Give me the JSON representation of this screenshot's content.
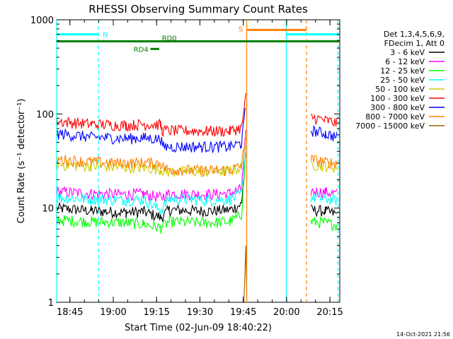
{
  "chart_data": {
    "type": "line",
    "title": "RHESSI Observing Summary Count Rates",
    "xlabel": "Start Time (02-Jun-09 18:40:22)",
    "ylabel": "Count Rate (s⁻¹ detector⁻¹)",
    "yscale": "log",
    "ylim": [
      1,
      1000
    ],
    "xlim_minutes": [
      0,
      98
    ],
    "x_ticks": [
      {
        "label": "18:45",
        "min": 4.6
      },
      {
        "label": "19:00",
        "min": 19.6
      },
      {
        "label": "19:15",
        "min": 34.6
      },
      {
        "label": "19:30",
        "min": 49.6
      },
      {
        "label": "19:45",
        "min": 64.6
      },
      {
        "label": "20:00",
        "min": 79.6
      },
      {
        "label": "20:15",
        "min": 94.6
      }
    ],
    "y_ticks": [
      {
        "label": "1",
        "v": 1
      },
      {
        "label": "10",
        "v": 10
      },
      {
        "label": "100",
        "v": 100
      },
      {
        "label": "1000",
        "v": 1000
      }
    ],
    "legend_header": [
      "Det 1,3,4,5,6,9,",
      "FDecim 1, Att 0"
    ],
    "series": [
      {
        "name": "3 - 6 keV",
        "color": "#000000",
        "segments": [
          [
            0,
            10
          ],
          [
            12,
            9.4
          ],
          [
            24,
            9.0
          ],
          [
            30,
            9.2
          ],
          [
            36,
            8.0
          ],
          [
            39,
            9.6
          ],
          [
            52,
            9.3
          ],
          [
            60,
            9.6
          ],
          [
            64,
            11
          ],
          [
            65.5,
            40
          ],
          [
            66,
            null
          ],
          [
            80,
            null
          ],
          [
            87,
            null
          ],
          [
            88,
            9.6
          ],
          [
            93,
            9.3
          ],
          [
            97,
            8.6
          ]
        ]
      },
      {
        "name": "6 - 12 keV",
        "color": "#ff00ff",
        "segments": [
          [
            0,
            15
          ],
          [
            12,
            14.3
          ],
          [
            24,
            14
          ],
          [
            30,
            14.2
          ],
          [
            36,
            13
          ],
          [
            39,
            14.3
          ],
          [
            52,
            14
          ],
          [
            60,
            14.3
          ],
          [
            64,
            16
          ],
          [
            65.5,
            60
          ],
          [
            66,
            null
          ],
          [
            80,
            null
          ],
          [
            87,
            null
          ],
          [
            88,
            15.2
          ],
          [
            93,
            14.8
          ],
          [
            97,
            14.2
          ]
        ]
      },
      {
        "name": "12 - 25 keV",
        "color": "#00ff00",
        "segments": [
          [
            0,
            7.5
          ],
          [
            12,
            7.2
          ],
          [
            24,
            7.0
          ],
          [
            30,
            6.8
          ],
          [
            36,
            6.2
          ],
          [
            39,
            7.2
          ],
          [
            52,
            7.0
          ],
          [
            60,
            7.2
          ],
          [
            64,
            8.5
          ],
          [
            65.5,
            40
          ],
          [
            66,
            null
          ],
          [
            80,
            null
          ],
          [
            87,
            null
          ],
          [
            88,
            7.2
          ],
          [
            93,
            7.0
          ],
          [
            97,
            6.6
          ]
        ]
      },
      {
        "name": "25 - 50 keV",
        "color": "#00ffff",
        "segments": [
          [
            0,
            13
          ],
          [
            12,
            12.5
          ],
          [
            24,
            12.2
          ],
          [
            30,
            12.4
          ],
          [
            36,
            9.5
          ],
          [
            39,
            12.6
          ],
          [
            52,
            12.2
          ],
          [
            60,
            12.5
          ],
          [
            64,
            14
          ],
          [
            65.5,
            45
          ],
          [
            66,
            null
          ],
          [
            80,
            null
          ],
          [
            87,
            null
          ],
          [
            88,
            13
          ],
          [
            93,
            12.6
          ],
          [
            97,
            12.1
          ]
        ]
      },
      {
        "name": "50 - 100 keV",
        "color": "#cccc00",
        "segments": [
          [
            0,
            29
          ],
          [
            12,
            28
          ],
          [
            24,
            27
          ],
          [
            30,
            27
          ],
          [
            36,
            26
          ],
          [
            38,
            24.5
          ],
          [
            52,
            24.5
          ],
          [
            60,
            25
          ],
          [
            64,
            27
          ],
          [
            65.5,
            55
          ],
          [
            66,
            null
          ],
          [
            80,
            null
          ],
          [
            87,
            null
          ],
          [
            88,
            29
          ],
          [
            93,
            28
          ],
          [
            97,
            27
          ]
        ]
      },
      {
        "name": "100 - 300 keV",
        "color": "#ff0000",
        "segments": [
          [
            0,
            84
          ],
          [
            12,
            78
          ],
          [
            24,
            76
          ],
          [
            30,
            78
          ],
          [
            36,
            77
          ],
          [
            36.5,
            67
          ],
          [
            52,
            66
          ],
          [
            60,
            66
          ],
          [
            64,
            72
          ],
          [
            65.5,
            150
          ],
          [
            66,
            null
          ],
          [
            80,
            null
          ],
          [
            87,
            null
          ],
          [
            88,
            93
          ],
          [
            93,
            86
          ],
          [
            97,
            80
          ]
        ]
      },
      {
        "name": "300 - 800 keV",
        "color": "#0000ff",
        "segments": [
          [
            0,
            62
          ],
          [
            12,
            57
          ],
          [
            24,
            55
          ],
          [
            30,
            56
          ],
          [
            36,
            54
          ],
          [
            37,
            45
          ],
          [
            52,
            45
          ],
          [
            60,
            45
          ],
          [
            64,
            49
          ],
          [
            65.5,
            120
          ],
          [
            66,
            null
          ],
          [
            80,
            null
          ],
          [
            87,
            null
          ],
          [
            88,
            67
          ],
          [
            93,
            62
          ],
          [
            97,
            57
          ]
        ]
      },
      {
        "name": "800 - 7000 keV",
        "color": "#ff8000",
        "segments": [
          [
            0,
            33
          ],
          [
            12,
            31
          ],
          [
            24,
            30
          ],
          [
            30,
            30.5
          ],
          [
            36,
            30
          ],
          [
            37.5,
            26
          ],
          [
            52,
            25
          ],
          [
            60,
            25.5
          ],
          [
            64,
            28
          ],
          [
            65.5,
            60
          ],
          [
            66,
            null
          ],
          [
            80,
            null
          ],
          [
            87,
            null
          ],
          [
            88,
            33
          ],
          [
            93,
            31
          ],
          [
            97,
            30
          ]
        ]
      },
      {
        "name": "7000 - 15000 keV",
        "color": "#996600",
        "segments": [
          [
            64.8,
            1
          ],
          [
            65.2,
            2
          ],
          [
            65.5,
            4
          ],
          [
            65.8,
            1
          ],
          [
            66,
            null
          ]
        ]
      }
    ],
    "markers": [
      {
        "label": "N",
        "color": "#00ffff",
        "level_v": 700,
        "x0": 0,
        "x1": 14.5
      },
      {
        "label": "",
        "color": "#00ffff",
        "level_v": 700,
        "x0": 79.5,
        "x1": 98
      },
      {
        "label": "S",
        "color": "#ff8000",
        "level_v": 780,
        "x0": 66,
        "x1": 86.5
      },
      {
        "label": "RD0",
        "color": "#008000",
        "level_v": 590,
        "x0": 0,
        "x1": 98
      },
      {
        "label": "RD4",
        "color": "#008000",
        "level_v": 490,
        "x0": 32.5,
        "x1": 35.5
      }
    ],
    "vlines": [
      {
        "color": "#00ffff",
        "style": "solid",
        "min": 0
      },
      {
        "color": "#00ffff",
        "style": "dashed",
        "min": 14.5
      },
      {
        "color": "#ff8000",
        "style": "solid",
        "min": 65.8
      },
      {
        "color": "#00ffff",
        "style": "solid",
        "min": 79.5
      },
      {
        "color": "#ff8000",
        "style": "dashed",
        "min": 86.5
      },
      {
        "color": "#00ffff",
        "style": "dashed",
        "min": 97.4
      }
    ],
    "gaps": [
      [
        66,
        87.5
      ]
    ],
    "grid": false,
    "legend_position": "right"
  },
  "footer_date": "14-Oct-2021 21:56"
}
